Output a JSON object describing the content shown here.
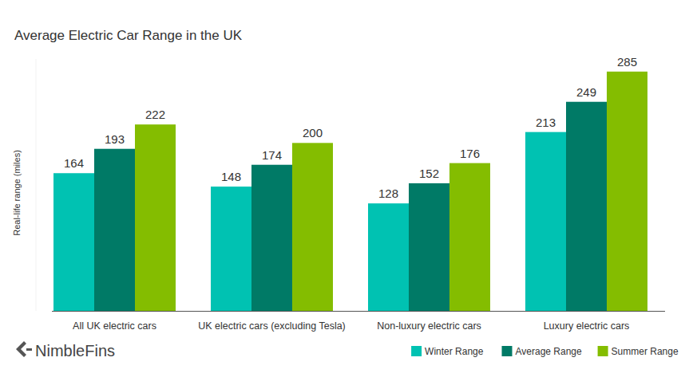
{
  "chart_data": {
    "type": "bar",
    "title": "Average Electric Car Range in the UK",
    "y_label": "Real-life range (miles)",
    "annotations": [
      "NimbleFins"
    ],
    "categories": [
      "All UK electric cars",
      "UK electric cars (excluding Tesla)",
      "Non-luxury electric cars",
      "Luxury electric cars"
    ],
    "series": [
      {
        "name": "Winter Range",
        "color": "#00c2b2",
        "values": [
          164,
          148,
          128,
          213
        ]
      },
      {
        "name": "Average Range",
        "color": "#007a66",
        "values": [
          193,
          174,
          152,
          249
        ]
      },
      {
        "name": "Summer Range",
        "color": "#84bd00",
        "values": [
          222,
          200,
          176,
          285
        ]
      }
    ],
    "ylim": [
      0,
      300
    ],
    "grid": false,
    "legend": "bottom right",
    "data_labels": true,
    "tick_labels": "x"
  }
}
